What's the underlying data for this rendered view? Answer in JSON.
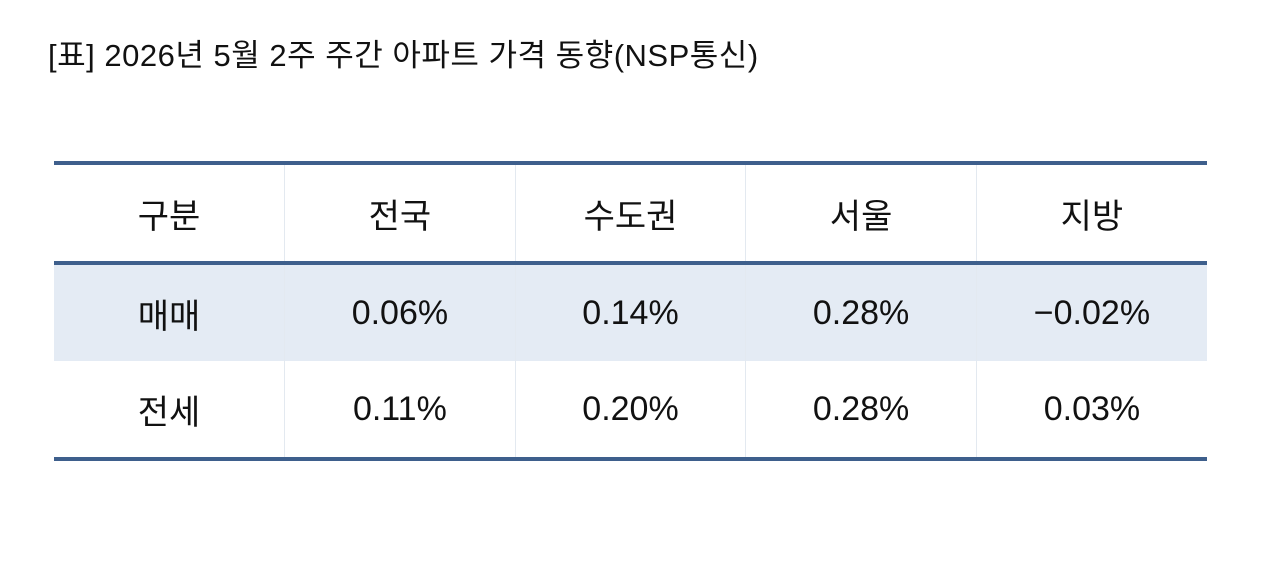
{
  "header": {
    "title": "[표] 2026년 5월 2주 주간 아파트 가격 동향(NSP통신)"
  },
  "table": {
    "columns": [
      "구분",
      "전국",
      "수도권",
      "서울",
      "지방"
    ],
    "rows": [
      [
        "매매",
        "0.06%",
        "0.14%",
        "0.28%",
        "−0.02%"
      ],
      [
        "전세",
        "0.11%",
        "0.20%",
        "0.28%",
        "0.03%"
      ]
    ]
  }
}
